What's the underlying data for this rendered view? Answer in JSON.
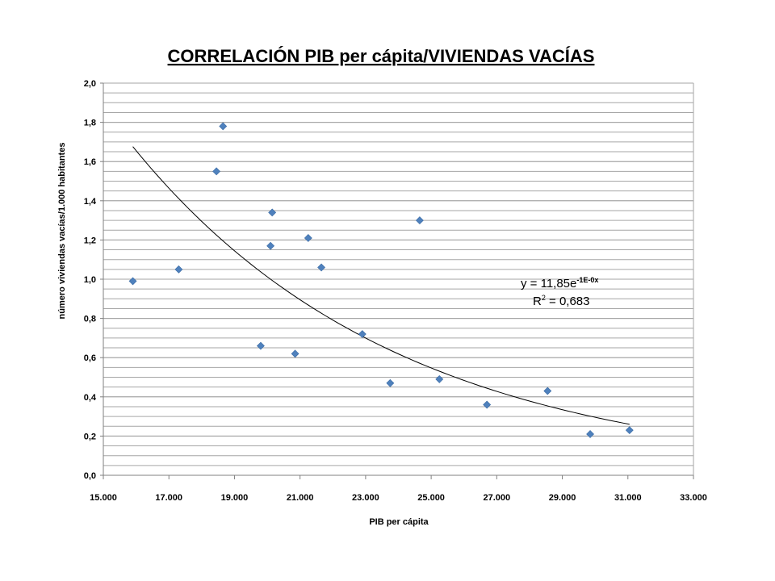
{
  "chart_data": {
    "type": "scatter",
    "title": "CORRELACIÓN PIB per cápita/VIVIENDAS VACÍAS",
    "xlabel": "PIB per cápita",
    "ylabel": "número viviendas vacías/1.000 habitantes",
    "xlim": [
      15000,
      33000
    ],
    "ylim": [
      0,
      2.0
    ],
    "x_ticks": [
      "15.000",
      "17.000",
      "19.000",
      "21.000",
      "23.000",
      "25.000",
      "27.000",
      "29.000",
      "31.000",
      "33.000"
    ],
    "y_ticks": [
      "0,0",
      "0,2",
      "0,4",
      "0,6",
      "0,8",
      "1,0",
      "1,2",
      "1,4",
      "1,6",
      "1,8",
      "2,0"
    ],
    "y_minor_step": 0.05,
    "grid": true,
    "marker_color": "#4f81bd",
    "points": [
      {
        "x": 15900,
        "y": 0.99
      },
      {
        "x": 17300,
        "y": 1.05
      },
      {
        "x": 18450,
        "y": 1.55
      },
      {
        "x": 18650,
        "y": 1.78
      },
      {
        "x": 19800,
        "y": 0.66
      },
      {
        "x": 20100,
        "y": 1.17
      },
      {
        "x": 20150,
        "y": 1.34
      },
      {
        "x": 20850,
        "y": 0.62
      },
      {
        "x": 21250,
        "y": 1.21
      },
      {
        "x": 21650,
        "y": 1.06
      },
      {
        "x": 22900,
        "y": 0.72
      },
      {
        "x": 23750,
        "y": 0.47
      },
      {
        "x": 24650,
        "y": 1.3
      },
      {
        "x": 25250,
        "y": 0.49
      },
      {
        "x": 26700,
        "y": 0.36
      },
      {
        "x": 28550,
        "y": 0.43
      },
      {
        "x": 29850,
        "y": 0.21
      },
      {
        "x": 31050,
        "y": 0.23
      }
    ],
    "trendline": {
      "type": "exponential",
      "a": 11.85,
      "b": -0.000123,
      "x_range": [
        15900,
        31050
      ],
      "equation_prefix": "y = 11,85e",
      "equation_exponent": "-1E-0x",
      "r2_prefix": "R",
      "r2_exponent": "2",
      "r2_value": " = 0,683"
    }
  }
}
